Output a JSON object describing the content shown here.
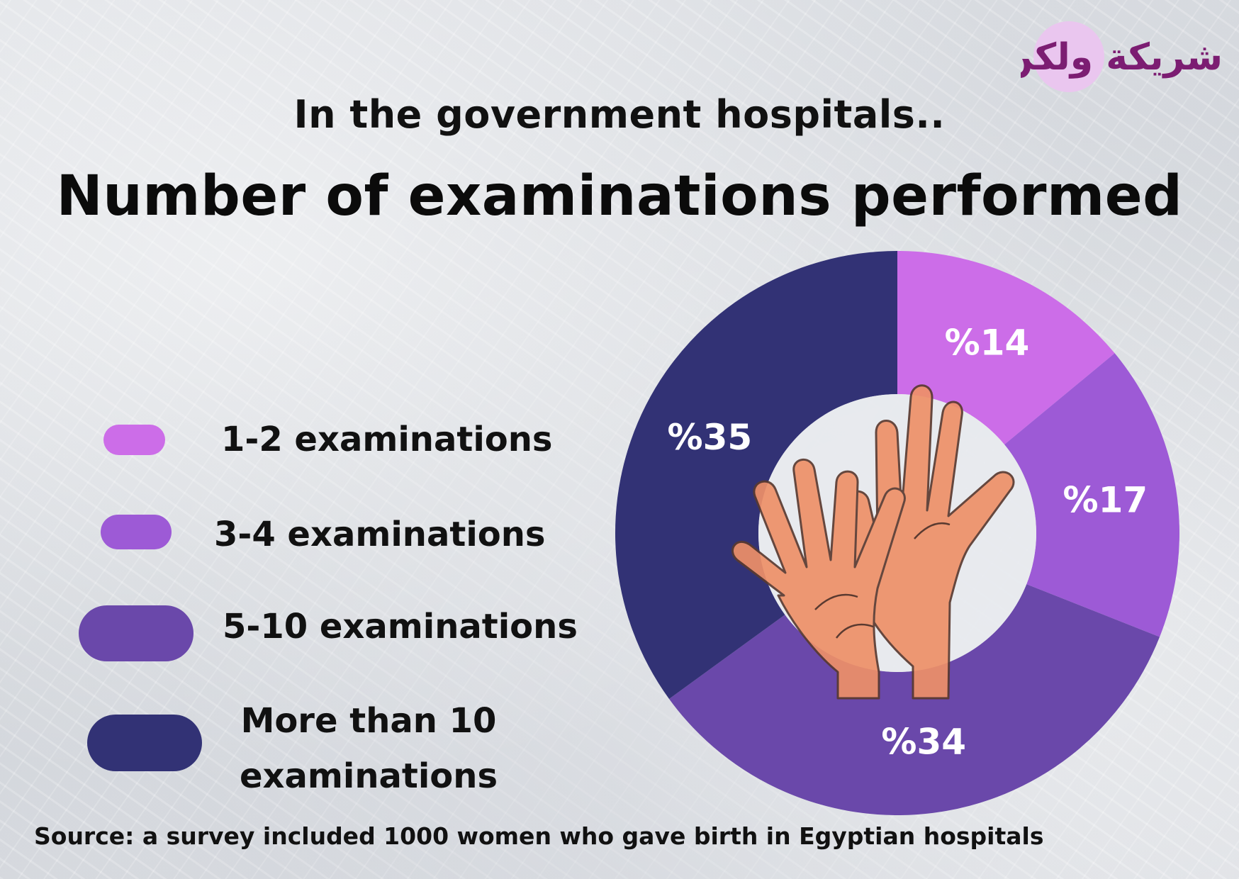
{
  "header": {
    "subtitle": "In the government hospitals..",
    "title": "Number of examinations performed"
  },
  "logo": {
    "text": "شريكة ولكن"
  },
  "legend": [
    {
      "label": "1-2 examinations",
      "color": "#cc6de8"
    },
    {
      "label": "3-4 examinations",
      "color": "#9d5ad6"
    },
    {
      "label": "5-10 examinations",
      "color": "#6a48aa"
    },
    {
      "label": "More than 10 examinations",
      "color": "#323275"
    }
  ],
  "chart_data": {
    "type": "pie",
    "donut": true,
    "categories": [
      "1-2 examinations",
      "3-4 examinations",
      "5-10 examinations",
      "More than 10 examinations"
    ],
    "values": [
      14,
      17,
      34,
      35
    ],
    "labels": [
      "%14",
      "%17",
      "%34",
      "%35"
    ],
    "colors": [
      "#cc6de8",
      "#9d5ad6",
      "#6a48aa",
      "#323275"
    ],
    "start": "top",
    "direction": "clockwise",
    "title": "Number of examinations performed",
    "center_icon": "hands-icon"
  },
  "footer": {
    "source": "Source: a survey included 1000 women who gave birth in Egyptian hospitals"
  }
}
